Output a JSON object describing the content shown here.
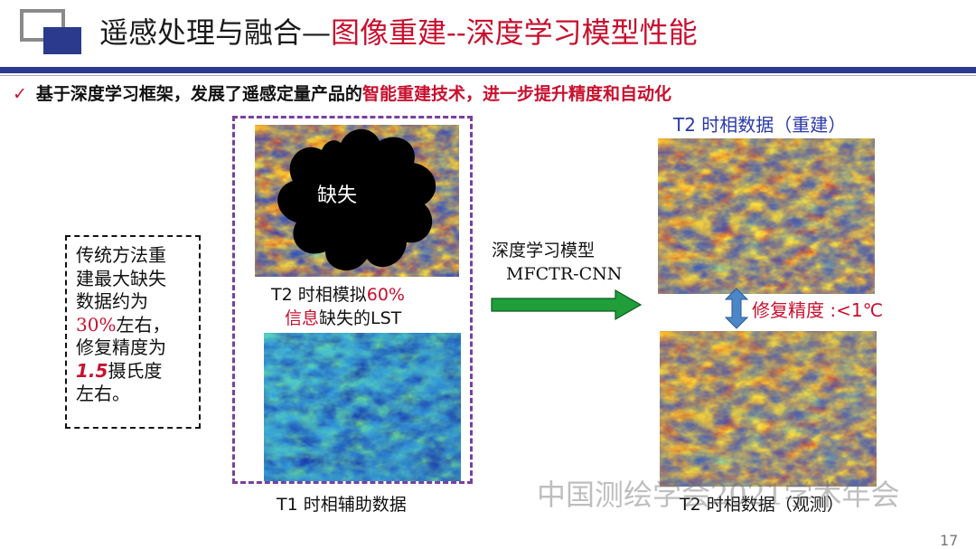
{
  "header": {
    "title_part1": "遥感处理与融合—",
    "title_part2": "图像重建--深度学习模型性能"
  },
  "bullet": {
    "check": "✓",
    "text_part1": "基于深度学习框架，发展了遥感定量产品的",
    "text_red": "智能重建技术，进一步提升精度和自动化"
  },
  "note": {
    "line1": "传统方法重",
    "line2": "建最大缺失",
    "line3": "数据约为",
    "line4_red": "30%",
    "line4_rest": "左右，",
    "line5": "修复精度为",
    "line6_red": "1.5",
    "line6_rest": "摄氏度",
    "line7": "左右。"
  },
  "maps": {
    "missing_label": "缺失",
    "t2_sim_caption_part1": "T2 时相模拟",
    "t2_sim_caption_red1": "60%",
    "t2_sim_caption_red2": "信息",
    "t2_sim_caption_part2": "缺失的LST",
    "t1_caption": "T1 时相辅助数据",
    "t2_recon_title": "T2 时相数据（重建）",
    "t2_obs_caption": "T2 时相数据（观测）"
  },
  "model": {
    "line1": "深度学习模型",
    "line2": "MFCTR-CNN"
  },
  "precision": "修复精度 :<1℃",
  "watermark": "中国测绘学会2021学术年会",
  "page_number": "17",
  "colors": {
    "accent_blue": "#2b3a8c",
    "accent_red": "#c8102e",
    "frame_purple": "#7a3fa0",
    "arrow_green": "#1f9e3a",
    "arrow_blue": "#4a86c8"
  }
}
